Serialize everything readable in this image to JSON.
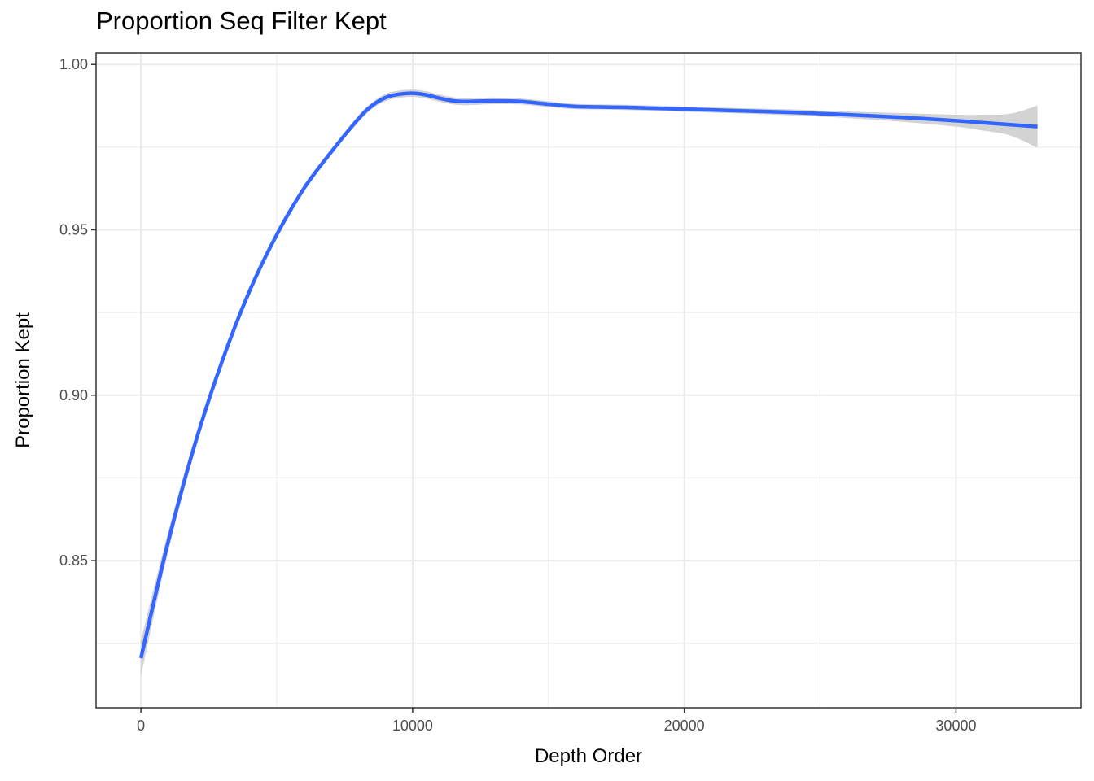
{
  "chart_data": {
    "type": "line",
    "title": "Proportion Seq Filter Kept",
    "xlabel": "Depth Order",
    "ylabel": "Proportion Kept",
    "xlim": [
      -1650,
      34600
    ],
    "ylim": [
      0.8055,
      1.0035
    ],
    "x_ticks": [
      0,
      10000,
      20000,
      30000
    ],
    "x_tick_labels": [
      "0",
      "10000",
      "20000",
      "30000"
    ],
    "y_ticks": [
      0.85,
      0.9,
      0.95,
      1.0
    ],
    "y_tick_labels": [
      "0.85",
      "0.90",
      "0.95",
      "1.00"
    ],
    "grid": true,
    "colors": {
      "line": "#3366ff",
      "ribbon": "#d3d3d3",
      "grid": "#ebebeb",
      "border": "#333333"
    },
    "series": [
      {
        "x": [
          0,
          1000,
          2000,
          3000,
          4000,
          5000,
          6000,
          7000,
          8000,
          8500,
          9000,
          9500,
          10000,
          10500,
          11000,
          11500,
          12000,
          13000,
          14000,
          15000,
          16000,
          18000,
          20000,
          22000,
          24000,
          26000,
          28000,
          30000,
          31000,
          32000,
          33000
        ],
        "y": [
          0.8205,
          0.8555,
          0.8855,
          0.9105,
          0.9315,
          0.9485,
          0.9625,
          0.9735,
          0.9835,
          0.9875,
          0.99,
          0.991,
          0.9913,
          0.9908,
          0.9898,
          0.989,
          0.9888,
          0.989,
          0.9888,
          0.988,
          0.9873,
          0.987,
          0.9865,
          0.986,
          0.9855,
          0.9848,
          0.984,
          0.983,
          0.9824,
          0.9818,
          0.9812
        ],
        "ci_lower": [
          0.815,
          0.8525,
          0.8835,
          0.909,
          0.9305,
          0.9477,
          0.9618,
          0.9728,
          0.9825,
          0.9865,
          0.9889,
          0.9899,
          0.9902,
          0.9897,
          0.9887,
          0.9879,
          0.9877,
          0.988,
          0.9879,
          0.9871,
          0.9865,
          0.9862,
          0.9857,
          0.9852,
          0.9846,
          0.9838,
          0.9827,
          0.9812,
          0.98,
          0.9785,
          0.9748
        ],
        "ci_upper": [
          0.826,
          0.8585,
          0.8875,
          0.912,
          0.9325,
          0.9493,
          0.9632,
          0.9742,
          0.9845,
          0.9885,
          0.9911,
          0.9921,
          0.9924,
          0.9919,
          0.9909,
          0.9901,
          0.9899,
          0.99,
          0.9897,
          0.9889,
          0.9881,
          0.9878,
          0.9873,
          0.9868,
          0.9864,
          0.9858,
          0.9853,
          0.9848,
          0.9848,
          0.9851,
          0.9876
        ]
      }
    ]
  }
}
